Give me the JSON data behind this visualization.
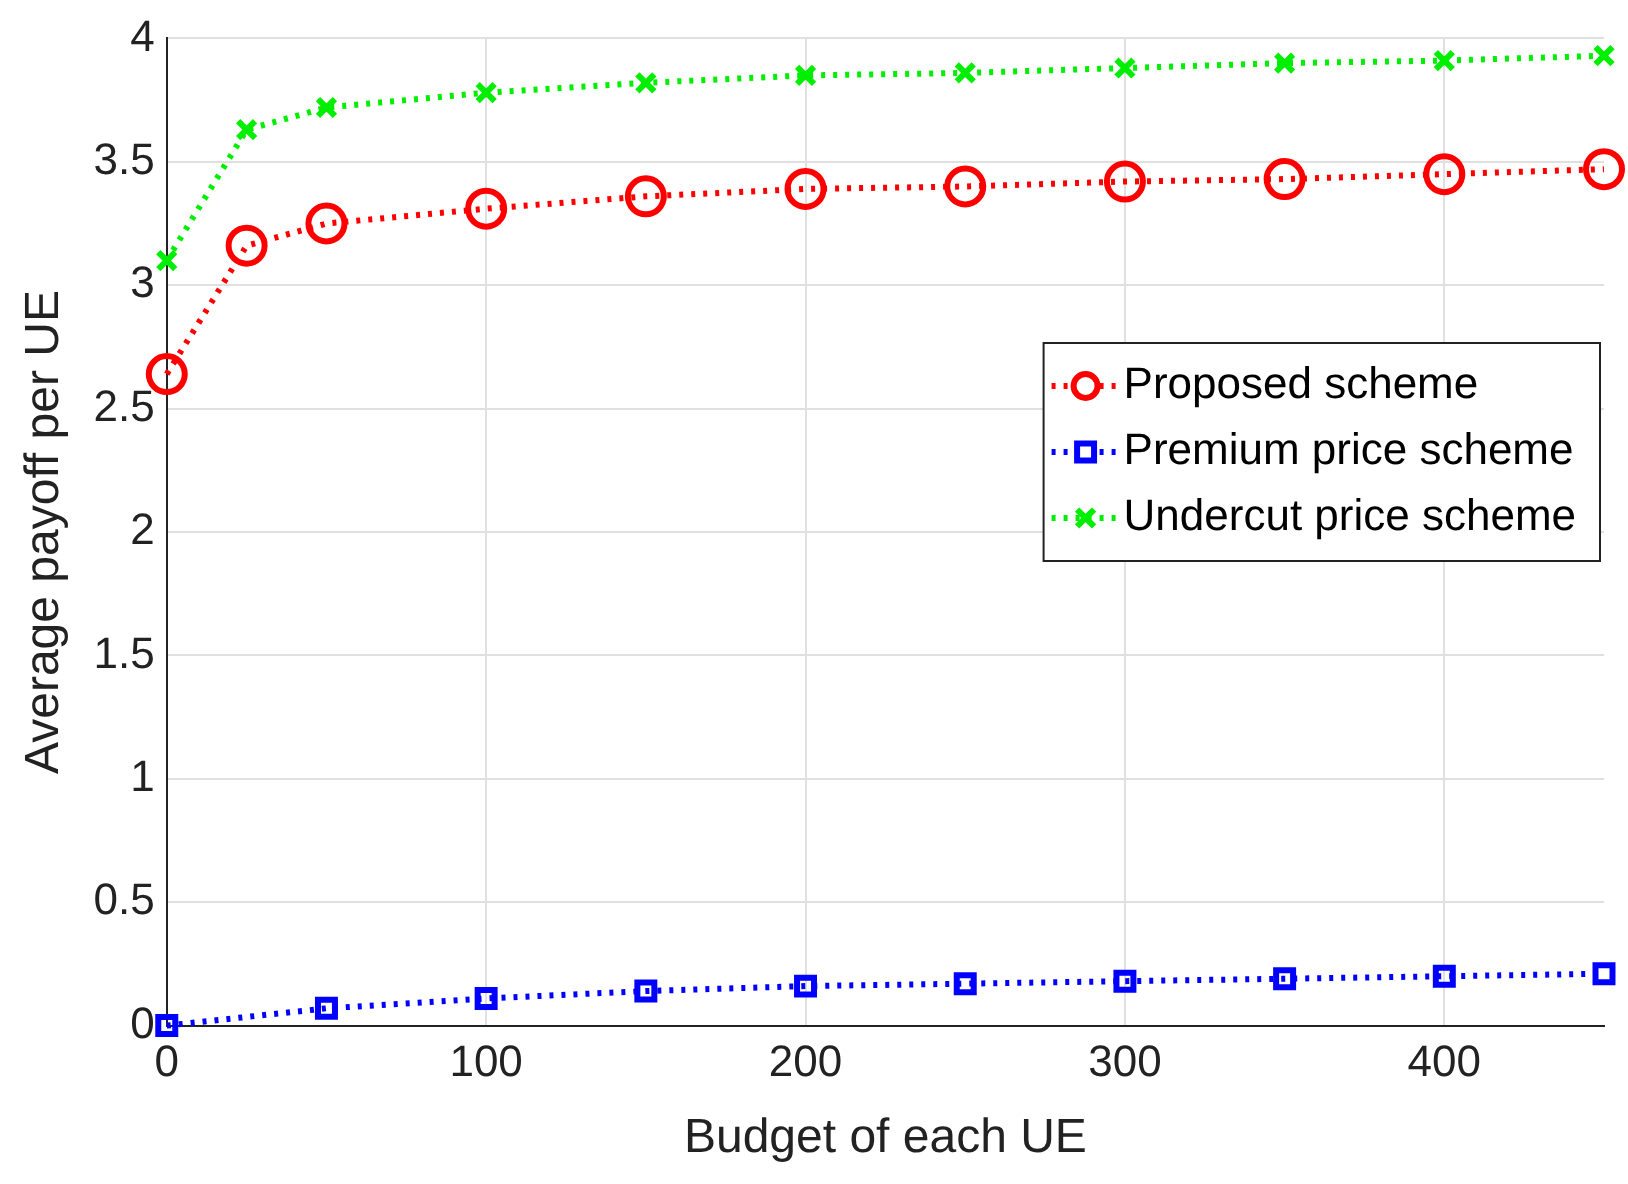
{
  "chart_data": {
    "type": "line",
    "xlabel": "Budget of each UE",
    "ylabel": "Average payoff per UE",
    "xlim": [
      0,
      450
    ],
    "xticks": [
      0,
      100,
      200,
      300,
      400
    ],
    "ylim": [
      0,
      4
    ],
    "yticks": [
      0,
      0.5,
      1,
      1.5,
      2,
      2.5,
      3,
      3.5,
      4
    ],
    "grid": true,
    "legend": "right",
    "line_style": "dotted",
    "series": [
      {
        "name": "Proposed scheme",
        "color": "#ff0000",
        "marker": "circle",
        "x": [
          0,
          25,
          50,
          100,
          150,
          200,
          250,
          300,
          350,
          400,
          450
        ],
        "values": [
          2.64,
          3.16,
          3.25,
          3.31,
          3.36,
          3.39,
          3.4,
          3.42,
          3.43,
          3.45,
          3.47
        ]
      },
      {
        "name": "Premium price scheme",
        "color": "#0000ff",
        "marker": "square",
        "x": [
          0,
          50,
          100,
          150,
          200,
          250,
          300,
          350,
          400,
          450
        ],
        "values": [
          0,
          0.07,
          0.11,
          0.14,
          0.16,
          0.17,
          0.18,
          0.19,
          0.2,
          0.21
        ]
      },
      {
        "name": "Undercut price scheme",
        "color": "#00ee00",
        "marker": "cross",
        "x": [
          0,
          25,
          50,
          100,
          150,
          200,
          250,
          300,
          350,
          400,
          450
        ],
        "values": [
          3.1,
          3.63,
          3.72,
          3.78,
          3.82,
          3.85,
          3.86,
          3.88,
          3.9,
          3.91,
          3.93
        ]
      }
    ]
  }
}
